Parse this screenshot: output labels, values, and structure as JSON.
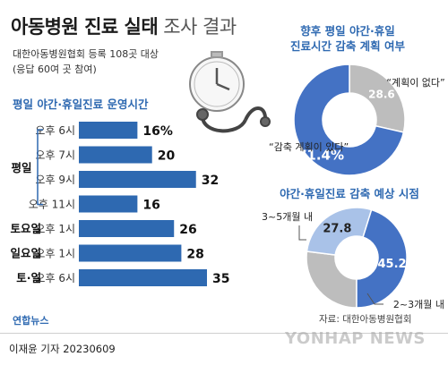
{
  "header": {
    "title": "아동병원 진료 실태",
    "title_suffix": "조사 결과",
    "subtitle_line1": "대한아동병원협회 등록 108곳 대상",
    "subtitle_line2": "(응답 60여 곳 참여)"
  },
  "footer": {
    "source": "자료: 대한아동병원협회",
    "byline": "이재윤 기자  20230609",
    "agency": "연합뉴스",
    "watermark": "YONHAP NEWS"
  },
  "colors": {
    "blue": "#4472c4",
    "light_blue": "#a9c2e8",
    "gray": "#bdbdbd",
    "bar": "#2e69b1",
    "accent": "#2e69b1"
  },
  "chart_data": [
    {
      "type": "bar",
      "orientation": "horizontal",
      "title": "평일 야간·휴일진료 운영시간",
      "groups": [
        {
          "label": "평일",
          "rows": [
            0,
            1,
            2,
            3
          ]
        },
        {
          "label": "토요일",
          "rows": [
            4
          ]
        },
        {
          "label": "일요일",
          "rows": [
            5
          ]
        },
        {
          "label": "토·일",
          "rows": [
            6
          ]
        }
      ],
      "categories": [
        "오후 6시",
        "오후 7시",
        "오후 9시",
        "오후 11시",
        "오후 1시",
        "오후 1시",
        "오후 6시"
      ],
      "values": [
        16,
        20,
        32,
        16,
        26,
        28,
        35
      ],
      "value_labels": [
        "16%",
        "20",
        "32",
        "16",
        "26",
        "28",
        "35"
      ],
      "unit": "%"
    },
    {
      "type": "pie",
      "style": "donut",
      "title": "향후 평일 야간·휴일 진료시간 감축 계획 여부",
      "slices": [
        {
          "label": "“계획이 없다”",
          "value": 28.6,
          "display": "28.6",
          "color": "#bdbdbd"
        },
        {
          "label": "“감축 계획이 있다”",
          "value": 71.4,
          "display": "71.4%",
          "color": "#4472c4"
        }
      ]
    },
    {
      "type": "pie",
      "style": "donut",
      "title": "야간·휴일진료 감축 예상 시점",
      "slices": [
        {
          "label": "3~5개월 내",
          "value": 45.2,
          "display": "45.2",
          "color": "#4472c4"
        },
        {
          "label": "2~3개월 내",
          "value": 27.8,
          "display": "27.8",
          "color": "#a9c2e8"
        },
        {
          "label": "",
          "value": 27.0,
          "display": "",
          "color": "#bdbdbd"
        }
      ]
    }
  ]
}
